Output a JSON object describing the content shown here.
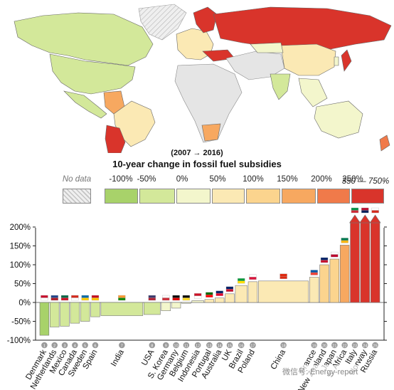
{
  "map_colors": {
    "nodata": "#e5e5e5",
    "neg100": "#a8d26a",
    "neg50": "#d3e89a",
    "zero": "#f3f6cc",
    "p50": "#fbe9b4",
    "p100": "#fbd48e",
    "p150": "#f7a860",
    "p200": "#f07a4a",
    "p250": "#d9342b"
  },
  "header": {
    "period": "(2007 → 2016)",
    "subtitle": "10-year change in fossil fuel subsidies"
  },
  "legend": {
    "nodata_label": "No data",
    "items": [
      {
        "label": "-100%",
        "color": "#a8d26a"
      },
      {
        "label": "-50%",
        "color": "#d3e89a"
      },
      {
        "label": "0%",
        "color": "#f3f6cc"
      },
      {
        "label": "50%",
        "color": "#fbe9b4"
      },
      {
        "label": "100%",
        "color": "#fbd48e"
      },
      {
        "label": "150%",
        "color": "#f7a860"
      },
      {
        "label": "200%",
        "color": "#f07a4a"
      },
      {
        "label": "250%",
        "color": "#d9342b"
      }
    ],
    "extra_label": "350 — 750%"
  },
  "chart_data": {
    "type": "bar",
    "ylim": [
      -100,
      200
    ],
    "yticks": [
      "-100%",
      "-50%",
      "0%",
      "50%",
      "100%",
      "150%",
      "200%"
    ],
    "ytick_values": [
      -100,
      -50,
      0,
      50,
      100,
      150,
      200
    ],
    "countries": [
      {
        "num": "1",
        "name": "Denmark",
        "value": -87,
        "weight": 1,
        "color": "#a8d26a"
      },
      {
        "num": "2",
        "name": "Netherlands",
        "value": -65,
        "weight": 1,
        "color": "#d3e89a"
      },
      {
        "num": "3",
        "name": "Mexico",
        "value": -63,
        "weight": 1,
        "color": "#d3e89a"
      },
      {
        "num": "4",
        "name": "Canada",
        "value": -55,
        "weight": 1,
        "color": "#d3e89a"
      },
      {
        "num": "5",
        "name": "Sweden",
        "value": -50,
        "weight": 1,
        "color": "#d3e89a"
      },
      {
        "num": "6",
        "name": "Spain",
        "value": -38,
        "weight": 1,
        "color": "#d3e89a"
      },
      {
        "num": "7",
        "name": "India",
        "value": -35,
        "weight": 4.6,
        "color": "#d3e89a"
      },
      {
        "num": "8",
        "name": "USA",
        "value": -32,
        "weight": 1.8,
        "color": "#d3e89a"
      },
      {
        "num": "9",
        "name": "S. Korea",
        "value": -22,
        "weight": 1,
        "color": "#f3f6cc"
      },
      {
        "num": "10",
        "name": "Germany",
        "value": -15,
        "weight": 1,
        "color": "#f3f6cc"
      },
      {
        "num": "11",
        "name": "Belgium",
        "value": 0,
        "weight": 1,
        "color": "#f3f6cc"
      },
      {
        "num": "12",
        "name": "Indonesia",
        "value": 5,
        "weight": 1.3,
        "color": "#f3f6cc"
      },
      {
        "num": "13",
        "name": "Portugal",
        "value": 8,
        "weight": 1,
        "color": "#fbe9b4"
      },
      {
        "num": "14",
        "name": "Australia",
        "value": 12,
        "weight": 1,
        "color": "#fbe9b4"
      },
      {
        "num": "15",
        "name": "UK",
        "value": 23,
        "weight": 1,
        "color": "#fbe9b4"
      },
      {
        "num": "16",
        "name": "Brazil",
        "value": 45,
        "weight": 1.3,
        "color": "#fbe9b4"
      },
      {
        "num": "17",
        "name": "Poland",
        "value": 55,
        "weight": 1,
        "color": "#fbe9b4"
      },
      {
        "num": "18",
        "name": "China",
        "value": 57,
        "weight": 5.5,
        "color": "#fbe9b4"
      },
      {
        "num": "19",
        "name": "France",
        "value": 67,
        "weight": 1,
        "color": "#fbe9b4"
      },
      {
        "num": "20",
        "name": "New Zealand",
        "value": 100,
        "weight": 1,
        "color": "#fbd48e"
      },
      {
        "num": "21",
        "name": "Japan",
        "value": 115,
        "weight": 1,
        "color": "#fbd48e"
      },
      {
        "num": "22",
        "name": "S. Africa",
        "value": 152,
        "weight": 1,
        "color": "#f7a860"
      },
      {
        "num": "23",
        "name": "Italy",
        "value": 400,
        "weight": 1,
        "color": "#d9342b"
      },
      {
        "num": "24",
        "name": "Norway",
        "value": 500,
        "weight": 1,
        "color": "#d9342b"
      },
      {
        "num": "25",
        "name": "Russia",
        "value": 750,
        "weight": 1,
        "color": "#d9342b"
      }
    ]
  },
  "watermark": "微信号: Energy-report"
}
